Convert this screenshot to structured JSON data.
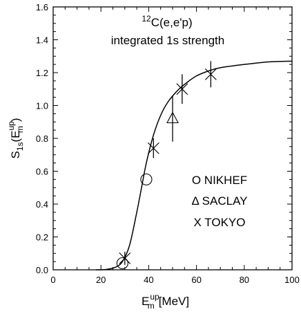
{
  "chart_data": {
    "type": "scatter",
    "title_sup": "12",
    "title_main": "C(e,e'p)",
    "subtitle": "integrated 1s strength",
    "xlabel": {
      "base": "E",
      "sup": "up",
      "sub": "m",
      "unit": "[MeV]"
    },
    "ylabel": {
      "base": "S",
      "sub": "1s",
      "open": "(E",
      "arg_sup": "up",
      "arg_sub": "m",
      "close": ")"
    },
    "xlim": [
      0,
      100
    ],
    "ylim": [
      0,
      1.6
    ],
    "xticks": [
      "0",
      "20",
      "40",
      "60",
      "80",
      "100"
    ],
    "yticks": [
      "0.0",
      "0.2",
      "0.4",
      "0.6",
      "0.8",
      "1.0",
      "1.2",
      "1.4",
      "1.6"
    ],
    "legend": [
      "O NIKHEF",
      "Δ SACLAY",
      "X TOKYO"
    ],
    "series": [
      {
        "marker": "circle",
        "points": [
          [
            29,
            0.04
          ],
          [
            39,
            0.55
          ]
        ]
      },
      {
        "marker": "triangle",
        "points": [
          [
            50,
            0.92,
            0.14
          ]
        ]
      },
      {
        "marker": "x",
        "points": [
          [
            30,
            0.07,
            0.04
          ],
          [
            42,
            0.74,
            0.06
          ],
          [
            54,
            1.1,
            0.09
          ],
          [
            66,
            1.19,
            0.08
          ]
        ]
      }
    ],
    "curve": [
      [
        18,
        0.0
      ],
      [
        22,
        0.002
      ],
      [
        26,
        0.015
      ],
      [
        29,
        0.05
      ],
      [
        32,
        0.15
      ],
      [
        35,
        0.35
      ],
      [
        37,
        0.5
      ],
      [
        39,
        0.65
      ],
      [
        42,
        0.82
      ],
      [
        45,
        0.94
      ],
      [
        48,
        1.02
      ],
      [
        52,
        1.09
      ],
      [
        56,
        1.14
      ],
      [
        60,
        1.18
      ],
      [
        65,
        1.21
      ],
      [
        70,
        1.23
      ],
      [
        80,
        1.25
      ],
      [
        90,
        1.265
      ],
      [
        100,
        1.27
      ]
    ]
  }
}
